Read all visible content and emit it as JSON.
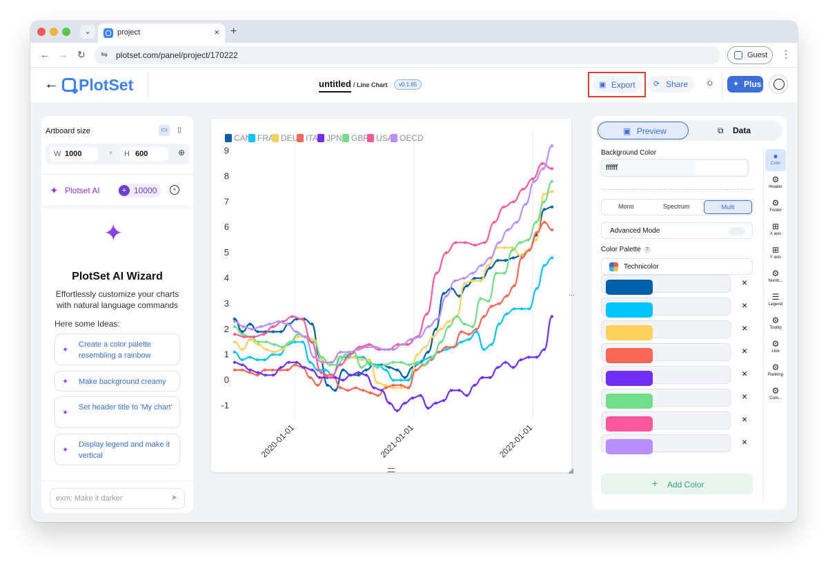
{
  "browser": {
    "tab_title": "project",
    "tab_close": "×",
    "new_tab": "+",
    "dropdown": "⌄",
    "url": "plotset.com/panel/project/170222",
    "profile": "Guest",
    "menu": "⋮",
    "nav_back": "←",
    "nav_forward": "→",
    "nav_reload": "↻",
    "tune_icon": "⇋"
  },
  "header": {
    "back": "←",
    "logo": "PlotSet",
    "doc_title": "untitled",
    "doc_subtitle": "/ Line Chart",
    "version": "v0.1.65",
    "export_label": "Export",
    "export_icon": "▣",
    "share_label": "Share",
    "share_icon": "⟳",
    "theme_icon": "☼",
    "plus_label": "Plus",
    "plus_icon": "✦"
  },
  "left_panel": {
    "artboard_label": "Artboard size",
    "desktop_icon": "▭",
    "mobile_icon": "▯",
    "width_key": "W",
    "width_value": "1000",
    "times": "×",
    "height_key": "H",
    "height_value": "600",
    "link_icon": "⊕",
    "ai_label": "Plotset AI",
    "ai_icon": "✦",
    "credits": "10000",
    "ai_close": "×",
    "wizard_icon": "✦",
    "wizard_title": "PlotSet AI Wizard",
    "wizard_desc": "Effortlessly customize your charts with natural language commands",
    "ideas_label": "Here some Ideas:",
    "idea_icon": "✦",
    "ideas": [
      "Create a color palette resembling a rainbow",
      "Make background creamy",
      "Set header title to 'My chart'",
      "Display legend and make it vertical"
    ],
    "chat_placeholder": "exm: Make it darker",
    "send_icon": "➤"
  },
  "right_panel": {
    "tab_preview": "Preview",
    "tab_preview_icon": "▣",
    "tab_data": "Data",
    "tab_data_icon": "⧉",
    "bg_label": "Background Color",
    "bg_value": "ffffff",
    "modes": [
      "Mono",
      "Spectrum",
      "Multi"
    ],
    "advanced_label": "Advanced Mode",
    "palette_label": "Color Palette",
    "palette_hint": "?",
    "palette_value": "Technicolor",
    "colors": [
      "005EAA",
      "00C5FC",
      "FED15C",
      "F86755",
      "6F2FF9",
      "72DE8A",
      "FA579D",
      "B68FFB"
    ],
    "remove": "×",
    "add_color": "Add Color",
    "add_icon": "+",
    "rail": [
      {
        "label": "Color",
        "icon": "●"
      },
      {
        "label": "Header",
        "icon": "⚙"
      },
      {
        "label": "Footer",
        "icon": "⚙"
      },
      {
        "label": "X axis",
        "icon": "⊞"
      },
      {
        "label": "Y axis",
        "icon": "⊞"
      },
      {
        "label": "Numb...",
        "icon": "⚙"
      },
      {
        "label": "Legend",
        "icon": "☰"
      },
      {
        "label": "Tooltip",
        "icon": "⚙"
      },
      {
        "label": "Line",
        "icon": "⚙"
      },
      {
        "label": "Ranking",
        "icon": "⚙"
      },
      {
        "label": "Com...",
        "icon": "⚙"
      }
    ],
    "resize_handle": "⋯"
  },
  "chart_data": {
    "type": "line",
    "title": "",
    "xlabel": "",
    "ylabel": "",
    "ylim": [
      -1.5,
      9.5
    ],
    "yticks": [
      -1,
      0,
      1,
      2,
      3,
      4,
      5,
      6,
      7,
      8,
      9
    ],
    "x_start": "2019-07-01",
    "x_end": "2022-03-01",
    "xticks": [
      "2020-01-01",
      "2021-01-01",
      "2022-01-01"
    ],
    "grid": "vertical",
    "legend_position": "top-left",
    "series": [
      {
        "name": "CAN",
        "color": "#005EAA",
        "values": [
          2.4,
          1.9,
          2.2,
          1.9,
          1.9,
          1.9,
          1.9,
          2.2,
          2.4,
          2.4,
          2.2,
          0.9,
          -0.2,
          -0.4,
          0.4,
          0.2,
          0.2,
          0.4,
          0.6,
          0.6,
          0.5,
          0.4,
          0.1,
          0.5,
          0.7,
          1.1,
          2.0,
          3.4,
          3.6,
          3.3,
          3.7,
          4.0,
          4.0,
          4.4,
          4.7,
          4.7,
          4.8,
          4.9,
          5.1,
          5.7,
          6.7,
          6.8
        ]
      },
      {
        "name": "FRA",
        "color": "#00C5FC",
        "values": [
          1.1,
          0.8,
          0.9,
          0.8,
          0.8,
          1.0,
          1.0,
          1.4,
          1.5,
          1.5,
          0.7,
          0.4,
          0.4,
          0.2,
          0.9,
          0.9,
          0.9,
          0.9,
          0.6,
          0.6,
          0.4,
          0.0,
          0.0,
          0.0,
          0.6,
          0.8,
          0.9,
          1.1,
          1.2,
          1.3,
          1.5,
          1.6,
          1.9,
          1.2,
          1.4,
          2.2,
          2.6,
          2.8,
          2.8,
          2.8,
          3.6,
          4.5,
          4.8
        ]
      },
      {
        "name": "DEU",
        "color": "#FED15C",
        "values": [
          1.5,
          1.2,
          1.6,
          1.4,
          1.2,
          1.1,
          1.2,
          1.5,
          1.7,
          1.7,
          1.6,
          0.8,
          0.6,
          0.9,
          0.8,
          0.9,
          0.8,
          0.8,
          -0.1,
          -0.2,
          -0.3,
          -0.3,
          -0.3,
          1.0,
          1.3,
          1.7,
          2.0,
          2.3,
          2.5,
          3.8,
          3.9,
          3.9,
          4.5,
          5.2,
          5.2,
          5.2,
          4.9,
          5.1,
          5.5,
          7.3,
          7.4
        ]
      },
      {
        "name": "ITA",
        "color": "#F86755",
        "values": [
          0.4,
          0.4,
          0.3,
          0.2,
          0.4,
          0.4,
          0.4,
          0.4,
          0.6,
          0.5,
          0.1,
          -0.2,
          0.2,
          0.2,
          -0.3,
          -0.4,
          -0.3,
          -0.4,
          -0.5,
          -0.6,
          -0.3,
          -0.2,
          -0.2,
          -0.3,
          0.4,
          0.6,
          0.8,
          1.1,
          1.3,
          1.3,
          1.9,
          1.8,
          2.0,
          2.5,
          2.9,
          3.0,
          3.3,
          3.7,
          4.8,
          5.1,
          5.8,
          6.2,
          5.9
        ]
      },
      {
        "name": "JPN",
        "color": "#6F2FF9",
        "values": [
          0.7,
          0.6,
          0.4,
          0.3,
          0.2,
          0.2,
          0.5,
          0.7,
          0.7,
          0.5,
          0.4,
          0.1,
          0.1,
          0.1,
          0.0,
          0.2,
          0.3,
          0.2,
          -0.3,
          -0.4,
          -0.9,
          -1.2,
          -0.9,
          -0.7,
          -0.6,
          -1.1,
          -0.9,
          -0.8,
          -0.4,
          -0.4,
          -0.6,
          -0.2,
          0.1,
          0.1,
          0.5,
          0.7,
          0.5,
          0.8,
          0.9,
          0.9,
          1.2,
          2.5
        ]
      },
      {
        "name": "GBR",
        "color": "#72DE8A",
        "values": [
          2.1,
          1.8,
          1.7,
          1.5,
          1.5,
          1.4,
          1.3,
          1.5,
          1.8,
          1.7,
          1.5,
          0.9,
          0.6,
          0.6,
          1.0,
          1.1,
          0.5,
          0.7,
          0.5,
          0.6,
          0.7,
          0.7,
          0.6,
          0.7,
          0.6,
          0.9,
          1.5,
          2.1,
          2.5,
          2.2,
          2.1,
          3.2,
          3.1,
          4.2,
          4.2,
          5.1,
          5.4,
          5.5,
          6.2,
          7.0,
          7.8
        ]
      },
      {
        "name": "USA",
        "color": "#FA579D",
        "values": [
          1.8,
          1.7,
          1.7,
          1.8,
          2.1,
          2.3,
          2.5,
          2.4,
          1.5,
          0.3,
          0.1,
          0.6,
          1.0,
          1.3,
          1.4,
          1.2,
          1.2,
          1.4,
          1.4,
          1.7,
          2.6,
          4.2,
          5.0,
          5.4,
          5.4,
          5.3,
          5.4,
          6.2,
          6.8,
          7.0,
          7.5,
          7.9,
          8.5,
          8.3
        ]
      },
      {
        "name": "OECD",
        "color": "#B68FFB",
        "values": [
          2.3,
          2.1,
          2.0,
          2.1,
          2.2,
          2.3,
          2.2,
          1.9,
          1.7,
          0.9,
          0.7,
          0.7,
          1.1,
          1.1,
          1.2,
          1.3,
          1.3,
          1.2,
          1.2,
          1.4,
          1.6,
          1.7,
          2.1,
          2.4,
          3.3,
          3.9,
          4.0,
          4.2,
          4.5,
          4.8,
          5.4,
          5.9,
          6.2,
          6.9,
          7.8,
          8.3,
          9.2
        ]
      }
    ]
  }
}
